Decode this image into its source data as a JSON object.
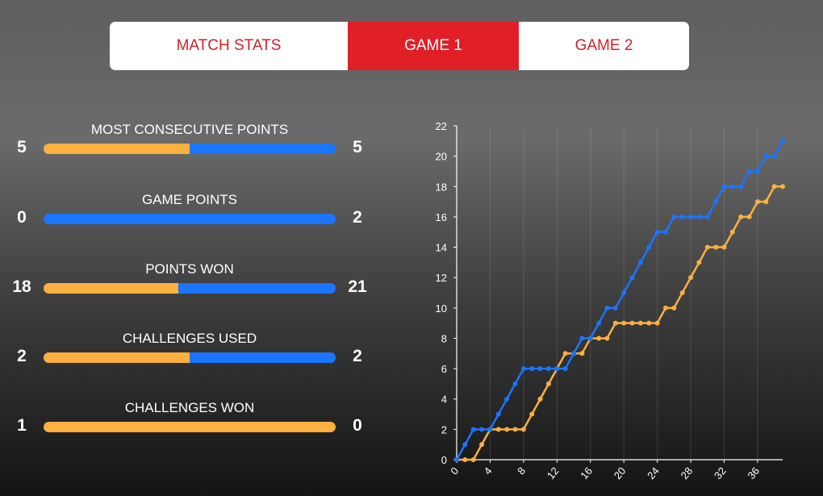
{
  "tabs": [
    {
      "label": "MATCH STATS",
      "active": false
    },
    {
      "label": "GAME 1",
      "active": true
    },
    {
      "label": "GAME 2",
      "active": false
    }
  ],
  "stats": [
    {
      "title": "MOST CONSECUTIVE POINTS",
      "left": 5,
      "right": 5
    },
    {
      "title": "GAME POINTS",
      "left": 0,
      "right": 2
    },
    {
      "title": "POINTS WON",
      "left": 18,
      "right": 21
    },
    {
      "title": "CHALLENGES USED",
      "left": 2,
      "right": 2
    },
    {
      "title": "CHALLENGES WON",
      "left": 1,
      "right": 0
    }
  ],
  "colors": {
    "accent_red": "#e01f26",
    "left_player": "#fbb040",
    "right_player": "#1a75ff"
  },
  "chart_data": {
    "type": "line",
    "title": "",
    "xlabel": "",
    "ylabel": "",
    "x_ticks": [
      "0",
      "4",
      "8",
      "12",
      "16",
      "20",
      "24",
      "28",
      "32",
      "36"
    ],
    "y_ticks": [
      "0",
      "2",
      "4",
      "6",
      "8",
      "10",
      "12",
      "14",
      "16",
      "18",
      "20",
      "22"
    ],
    "xlim": [
      0,
      39
    ],
    "ylim": [
      0,
      22
    ],
    "grid": true,
    "x": [
      0,
      1,
      2,
      3,
      4,
      5,
      6,
      7,
      8,
      9,
      10,
      11,
      12,
      13,
      14,
      15,
      16,
      17,
      18,
      19,
      20,
      21,
      22,
      23,
      24,
      25,
      26,
      27,
      28,
      29,
      30,
      31,
      32,
      33,
      34,
      35,
      36,
      37,
      38,
      39
    ],
    "series": [
      {
        "color": "#1a75ff",
        "values": [
          0,
          1,
          2,
          2,
          2,
          3,
          4,
          5,
          6,
          6,
          6,
          6,
          6,
          6,
          7,
          8,
          8,
          9,
          10,
          10,
          11,
          12,
          13,
          14,
          15,
          15,
          16,
          16,
          16,
          16,
          16,
          17,
          18,
          18,
          18,
          19,
          19,
          20,
          20,
          21
        ]
      },
      {
        "color": "#fbb040",
        "values": [
          0,
          0,
          0,
          1,
          2,
          2,
          2,
          2,
          2,
          3,
          4,
          5,
          6,
          7,
          7,
          7,
          8,
          8,
          8,
          9,
          9,
          9,
          9,
          9,
          9,
          10,
          10,
          11,
          12,
          13,
          14,
          14,
          14,
          15,
          16,
          16,
          17,
          17,
          18,
          18
        ]
      }
    ]
  }
}
